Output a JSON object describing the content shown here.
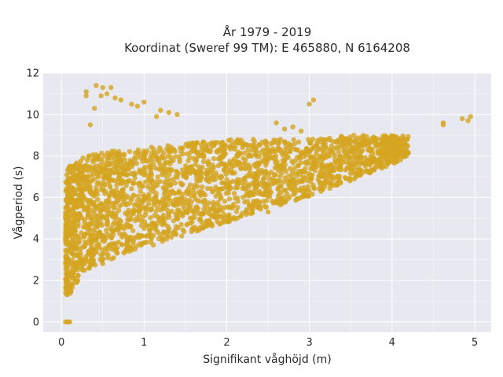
{
  "chart_data": {
    "type": "scatter",
    "title": "År 1979 - 2019",
    "subtitle": "Koordinat (Sweref 99 TM): E 465880, N 6164208",
    "xlabel": "Signifikant våghöjd (m)",
    "ylabel": "Vågperiod (s)",
    "xlim": [
      -0.22,
      5.2
    ],
    "ylim": [
      -0.5,
      12.0
    ],
    "xticks": [
      0,
      1,
      2,
      3,
      4,
      5
    ],
    "yticks": [
      0,
      2,
      4,
      6,
      8,
      10,
      12
    ],
    "xtick_labels": [
      "0",
      "1",
      "2",
      "3",
      "4",
      "5"
    ],
    "ytick_labels": [
      "0",
      "2",
      "4",
      "6",
      "8",
      "10",
      "12"
    ],
    "grid": true,
    "legend": "none",
    "colors": {
      "marker": "#d4a520",
      "plot_background": "#e8e8f0",
      "grid": "#ffffff",
      "text": "#2a2a2a"
    },
    "series": [
      {
        "points_summary": "dense cloud; approx. envelope of the bulk distribution",
        "lower_envelope": {
          "x": [
            0.05,
            0.1,
            0.2,
            0.3,
            0.5,
            0.75,
            1.0,
            1.25,
            1.5,
            1.75,
            2.0,
            2.5,
            3.0,
            3.5,
            4.0,
            4.2
          ],
          "y": [
            1.3,
            1.3,
            2.0,
            2.5,
            2.8,
            3.3,
            3.6,
            3.8,
            4.2,
            4.5,
            4.8,
            5.5,
            6.0,
            6.8,
            7.6,
            8.0
          ]
        },
        "upper_envelope": {
          "x": [
            0.05,
            0.1,
            0.2,
            0.3,
            0.5,
            0.75,
            1.0,
            1.25,
            1.5,
            1.75,
            2.0,
            2.5,
            3.0,
            3.5,
            4.0,
            4.2
          ],
          "y": [
            7.0,
            7.6,
            7.8,
            8.0,
            8.2,
            8.3,
            8.4,
            8.5,
            8.6,
            8.7,
            8.8,
            8.8,
            8.8,
            9.0,
            9.0,
            9.0
          ]
        },
        "outliers": {
          "x": [
            0.42,
            0.5,
            0.48,
            0.55,
            0.6,
            0.65,
            0.72,
            0.85,
            0.92,
            1.0,
            0.3,
            0.4,
            0.35,
            0.3,
            1.7,
            1.8,
            1.9,
            2.5,
            3.0,
            3.05,
            2.6,
            2.7,
            2.8,
            2.9,
            4.62,
            4.85,
            4.92,
            4.95,
            4.62,
            1.3,
            1.4,
            1.15,
            1.2,
            0.1,
            0.05,
            0.07,
            0.09
          ],
          "y": [
            11.4,
            11.3,
            10.9,
            11.0,
            11.3,
            10.8,
            10.7,
            10.5,
            10.4,
            10.6,
            11.1,
            10.3,
            9.5,
            10.9,
            5.2,
            5.4,
            5.1,
            5.3,
            10.5,
            10.7,
            9.6,
            9.3,
            9.4,
            9.2,
            9.6,
            9.8,
            9.7,
            9.9,
            9.5,
            10.1,
            10.0,
            9.9,
            10.2,
            0.0,
            0.0,
            0.0,
            0.0
          ]
        }
      }
    ]
  }
}
